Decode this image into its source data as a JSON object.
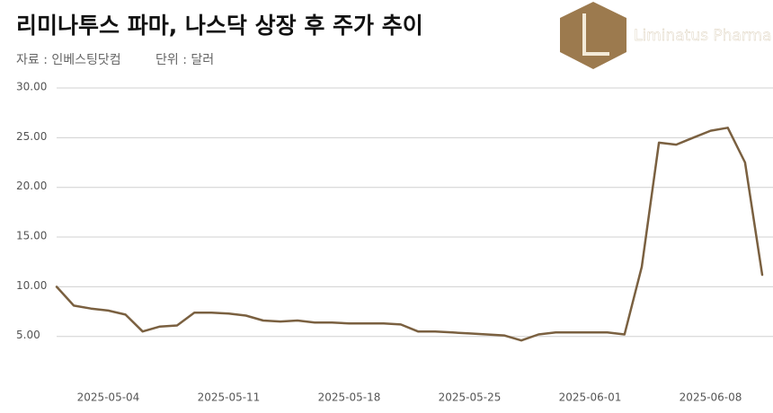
{
  "chart_data": {
    "type": "line",
    "title": "리미나투스 파마, 나스닥 상장 후 주가 추이",
    "source": "자료 : 인베스팅닷컴",
    "unit": "단위 : 달러",
    "logo_text": "Liminatus Pharma",
    "x": [
      "2025-05-01",
      "2025-05-02",
      "2025-05-03",
      "2025-05-04",
      "2025-05-05",
      "2025-05-06",
      "2025-05-07",
      "2025-05-08",
      "2025-05-09",
      "2025-05-10",
      "2025-05-11",
      "2025-05-12",
      "2025-05-13",
      "2025-05-14",
      "2025-05-15",
      "2025-05-16",
      "2025-05-17",
      "2025-05-18",
      "2025-05-19",
      "2025-05-20",
      "2025-05-21",
      "2025-05-22",
      "2025-05-23",
      "2025-05-24",
      "2025-05-25",
      "2025-05-26",
      "2025-05-27",
      "2025-05-28",
      "2025-05-29",
      "2025-05-30",
      "2025-05-31",
      "2025-06-01",
      "2025-06-02",
      "2025-06-03",
      "2025-06-04",
      "2025-06-05",
      "2025-06-06",
      "2025-06-07",
      "2025-06-08",
      "2025-06-09",
      "2025-06-10",
      "2025-06-11"
    ],
    "series": [
      {
        "color": "#7a6040",
        "values": [
          10.0,
          8.1,
          7.8,
          7.6,
          7.2,
          5.5,
          6.0,
          6.1,
          7.4,
          7.4,
          7.3,
          7.1,
          6.6,
          6.5,
          6.6,
          6.4,
          6.4,
          6.3,
          6.3,
          6.3,
          6.2,
          5.5,
          5.5,
          5.4,
          5.3,
          5.2,
          5.1,
          4.6,
          5.2,
          5.4,
          5.4,
          5.4,
          5.4,
          5.2,
          12,
          24.5,
          24.3,
          25.0,
          25.7,
          26.0,
          22.5,
          11.2
        ]
      }
    ],
    "xlim": [
      "2025-05-01",
      "2025-06-11"
    ],
    "xticks": [
      "2025-05-04",
      "2025-05-11",
      "2025-05-18",
      "2025-05-25",
      "2025-06-01",
      "2025-06-08"
    ],
    "ylim": [
      1,
      30
    ],
    "yticks": [
      {
        "value": 5,
        "label": "5.00"
      },
      {
        "value": 10,
        "label": "10.00"
      },
      {
        "value": 15,
        "label": "15.00"
      },
      {
        "value": 20,
        "label": "20.00"
      },
      {
        "value": 25,
        "label": "25.00"
      },
      {
        "value": 30,
        "label": "30.00"
      }
    ],
    "grid": true
  }
}
